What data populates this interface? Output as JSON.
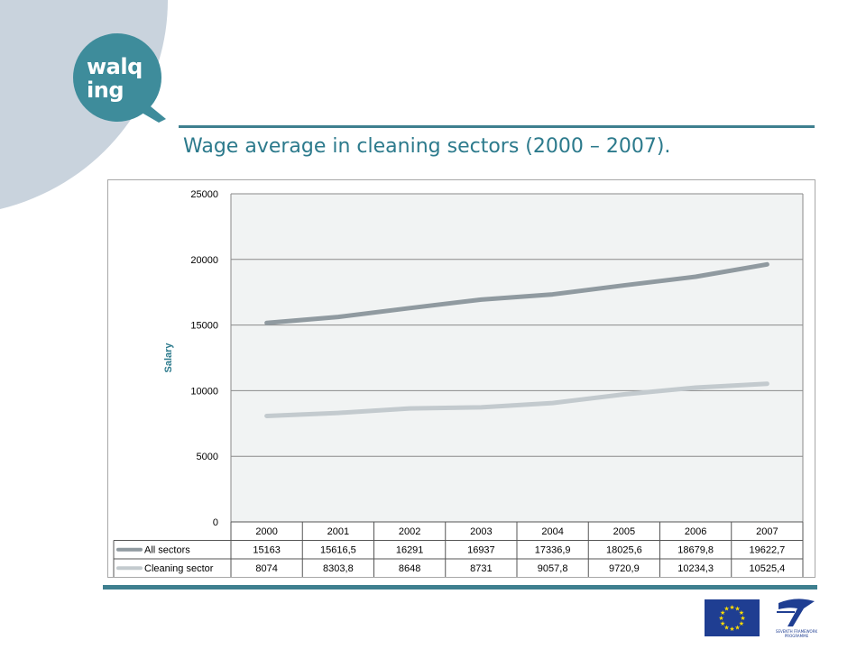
{
  "logo": {
    "line1": "walq",
    "line2": "ing"
  },
  "title": "Wage average in cleaning sectors (2000 – 2007).",
  "colors": {
    "brand": "#2c7a8c",
    "rule": "#3e7f8f",
    "arc": "#c9d3dd",
    "logo_circle": "#3e8c9b",
    "plot_bg": "#f1f3f3",
    "series_all": "#909aa0",
    "series_cleaning": "#c3cace"
  },
  "icons": {
    "eu": "eu-flag-icon",
    "fp7": "fp7-logo-icon"
  },
  "footer": {
    "fp7_caption_1": "SEVENTH FRAMEWORK",
    "fp7_caption_2": "PROGRAMME"
  },
  "chart_data": {
    "type": "line",
    "title": "",
    "xlabel": "",
    "ylabel": "Salary",
    "ylim": [
      0,
      25000
    ],
    "yticks": [
      "0",
      "5000",
      "10000",
      "15000",
      "20000",
      "25000"
    ],
    "grid": true,
    "legend": "data-table",
    "categories": [
      "2000",
      "2001",
      "2002",
      "2003",
      "2004",
      "2005",
      "2006",
      "2007"
    ],
    "series": [
      {
        "name": "All sectors",
        "values": [
          15163,
          15616.5,
          16291,
          16937,
          17336.9,
          18025.6,
          18679.8,
          19622.7
        ],
        "labels": [
          "15163",
          "15616,5",
          "16291",
          "16937",
          "17336,9",
          "18025,6",
          "18679,8",
          "19622,7"
        ],
        "color": "#909aa0"
      },
      {
        "name": "Cleaning sector",
        "values": [
          8074,
          8303.8,
          8648,
          8731,
          9057.8,
          9720.9,
          10234.3,
          10525.4
        ],
        "labels": [
          "8074",
          "8303,8",
          "8648",
          "8731",
          "9057,8",
          "9720,9",
          "10234,3",
          "10525,4"
        ],
        "color": "#c3cace"
      }
    ]
  }
}
